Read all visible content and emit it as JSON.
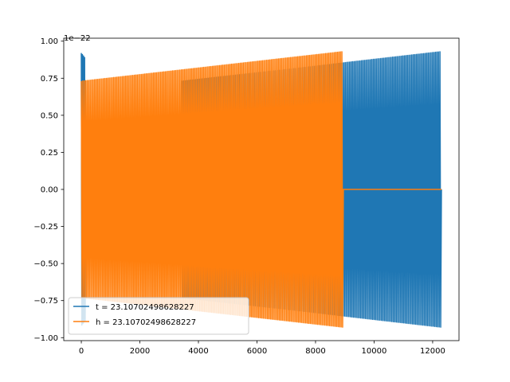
{
  "chart_data": {
    "type": "line",
    "title": "",
    "xlabel": "",
    "ylabel": "",
    "y_offset_label": "1e−22",
    "xlim": [
      -600,
      12900
    ],
    "ylim": [
      -1.02,
      1.02
    ],
    "x_ticks": [
      0,
      2000,
      4000,
      6000,
      8000,
      10000,
      12000
    ],
    "x_tick_labels": [
      "0",
      "2000",
      "4000",
      "6000",
      "8000",
      "10000",
      "12000"
    ],
    "y_ticks": [
      -1.0,
      -0.75,
      -0.5,
      -0.25,
      0.0,
      0.25,
      0.5,
      0.75,
      1.0
    ],
    "y_tick_labels": [
      "−1.00",
      "−0.75",
      "−0.50",
      "−0.25",
      "0.00",
      "0.25",
      "0.50",
      "0.75",
      "1.00"
    ],
    "grid": false,
    "legend_position": "lower-left",
    "series": [
      {
        "name": "t = 23.10702498628227",
        "color": "#1f77b4",
        "segments": [
          {
            "x_start": 0,
            "x_end": 150,
            "amp_start": 0.92,
            "amp_end": 0.88,
            "cycles": 4
          },
          {
            "x_start": 150,
            "x_end": 3450,
            "amp_start": 0.0,
            "amp_end": 0.0,
            "cycles": 0
          },
          {
            "x_start": 3450,
            "x_end": 12300,
            "amp_start": 0.73,
            "amp_end": 0.93,
            "cycles": 175
          }
        ]
      },
      {
        "name": "h = 23.10702498628227",
        "color": "#ff7f0e",
        "segments": [
          {
            "x_start": 0,
            "x_end": 8950,
            "amp_start": 0.73,
            "amp_end": 0.93,
            "cycles": 178
          },
          {
            "x_start": 8950,
            "x_end": 12300,
            "amp_start": 0.0,
            "amp_end": 0.0,
            "cycles": 0
          }
        ]
      }
    ]
  }
}
